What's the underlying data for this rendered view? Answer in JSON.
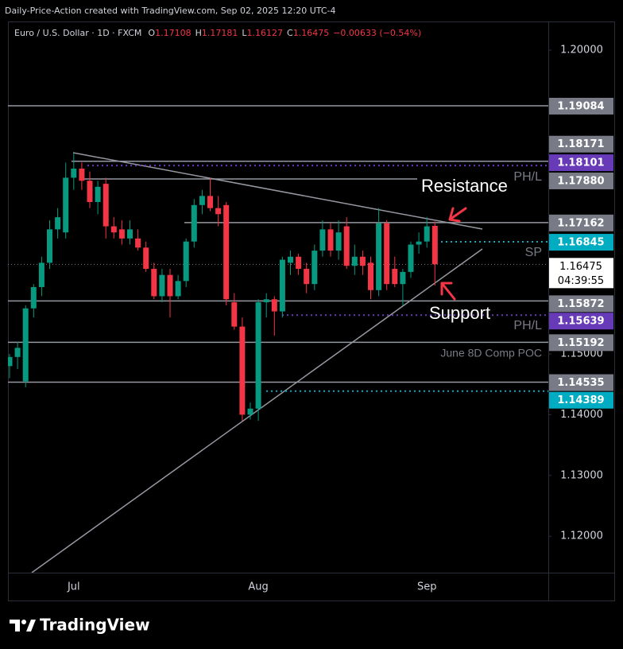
{
  "header": "Daily-Price-Action created with TradingView.com, Sep 02, 2025 12:20 UTC-4",
  "brand": "TradingView",
  "chart_data": {
    "type": "candlestick",
    "title": "Euro / U.S. Dollar · 1D · FXCM",
    "ohlc_letters": [
      "O",
      "H",
      "L",
      "C"
    ],
    "change": "−0.00633 (−0.54%)",
    "countdown": "04:39:55",
    "categories": [
      null,
      null,
      null,
      null,
      null,
      null,
      null,
      null,
      "Jul",
      null,
      null,
      null,
      null,
      null,
      null,
      null,
      null,
      null,
      null,
      null,
      null,
      null,
      null,
      null,
      null,
      null,
      null,
      null,
      null,
      null,
      null,
      "Aug",
      null,
      null,
      null,
      null,
      null,
      null,
      null,
      null,
      null,
      null,
      null,
      null,
      null,
      null,
      null,
      null,
      null,
      null,
      null,
      null,
      "Sep",
      null
    ],
    "open": [
      1.148,
      1.1495,
      1.1455,
      1.1575,
      1.161,
      1.165,
      1.1705,
      1.17,
      1.179,
      1.1805,
      1.1785,
      1.175,
      1.178,
      1.171,
      1.1705,
      1.169,
      1.169,
      1.1675,
      1.164,
      1.1595,
      1.163,
      1.1595,
      1.162,
      1.1685,
      1.1745,
      1.176,
      1.174,
      1.1745,
      1.1585,
      1.1545,
      1.14,
      1.141,
      1.1585,
      1.159,
      1.157,
      1.165,
      1.166,
      1.164,
      1.1615,
      1.167,
      1.1705,
      1.167,
      1.171,
      1.1645,
      1.166,
      1.165,
      1.1605,
      1.1715,
      1.164,
      1.1615,
      1.1635,
      1.168,
      1.1685,
      1.17108
    ],
    "high": [
      1.15,
      1.152,
      1.158,
      1.1615,
      1.166,
      1.172,
      1.174,
      1.1815,
      1.183,
      1.1815,
      1.18,
      1.1785,
      1.179,
      1.1725,
      1.172,
      1.172,
      1.1705,
      1.1685,
      1.165,
      1.164,
      1.164,
      1.163,
      1.169,
      1.1755,
      1.177,
      1.179,
      1.176,
      1.175,
      1.16,
      1.156,
      1.142,
      1.159,
      1.16,
      1.1595,
      1.166,
      1.167,
      1.1665,
      1.165,
      1.168,
      1.172,
      1.1715,
      1.172,
      1.1725,
      1.168,
      1.167,
      1.166,
      1.174,
      1.172,
      1.166,
      1.164,
      1.1685,
      1.17,
      1.1725,
      1.17181
    ],
    "low": [
      1.146,
      1.1475,
      1.1445,
      1.156,
      1.1595,
      1.164,
      1.169,
      1.169,
      1.177,
      1.177,
      1.174,
      1.173,
      1.169,
      1.169,
      1.168,
      1.168,
      1.167,
      1.1635,
      1.159,
      1.1585,
      1.156,
      1.159,
      1.161,
      1.1675,
      1.173,
      1.1735,
      1.171,
      1.158,
      1.154,
      1.139,
      1.1392,
      1.139,
      1.156,
      1.153,
      1.156,
      1.163,
      1.163,
      1.16,
      1.1605,
      1.166,
      1.166,
      1.1655,
      1.164,
      1.163,
      1.163,
      1.159,
      1.1595,
      1.1605,
      1.161,
      1.158,
      1.1625,
      1.1665,
      1.1675,
      1.16127
    ],
    "close": [
      1.1495,
      1.151,
      1.1575,
      1.161,
      1.165,
      1.1705,
      1.1725,
      1.179,
      1.1805,
      1.1785,
      1.175,
      1.1775,
      1.171,
      1.17,
      1.169,
      1.1705,
      1.1675,
      1.164,
      1.1595,
      1.163,
      1.1595,
      1.162,
      1.1685,
      1.1745,
      1.176,
      1.174,
      1.173,
      1.159,
      1.1545,
      1.14,
      1.141,
      1.1585,
      1.159,
      1.157,
      1.1655,
      1.166,
      1.164,
      1.1615,
      1.167,
      1.1705,
      1.167,
      1.17,
      1.1645,
      1.166,
      1.1645,
      1.1605,
      1.1715,
      1.1615,
      1.1615,
      1.1635,
      1.168,
      1.1685,
      1.171,
      1.16475
    ],
    "up_color": "#089981",
    "down_color": "#f23645",
    "ylim": [
      1.11401,
      1.20471
    ],
    "yticks": [
      {
        "value": 1.2,
        "label": "1.20000"
      },
      {
        "value": 1.15,
        "label": "1.15000"
      },
      {
        "value": 1.14,
        "label": "1.14000"
      },
      {
        "value": 1.13,
        "label": "1.13000"
      },
      {
        "value": 1.12,
        "label": "1.12000"
      }
    ],
    "grid": false,
    "levels": [
      {
        "value": 1.19084,
        "label": "1.19084",
        "color": "#787b86",
        "style": "solid"
      },
      {
        "value": 1.18171,
        "label": "1.18171",
        "color": "#787b86",
        "style": "solid"
      },
      {
        "value": 1.18101,
        "label": "1.18101",
        "color": "#673ab7",
        "style": "dotted"
      },
      {
        "value": 1.1788,
        "label": "1.17880",
        "color": "#787b86",
        "style": "solid"
      },
      {
        "value": 1.17162,
        "label": "1.17162",
        "color": "#787b86",
        "style": "solid"
      },
      {
        "value": 1.16845,
        "label": "1.16845",
        "color": "#00acc1",
        "style": "dotted"
      },
      {
        "value": 1.15872,
        "label": "1.15872",
        "color": "#787b86",
        "style": "solid"
      },
      {
        "value": 1.15639,
        "label": "1.15639",
        "color": "#673ab7",
        "style": "dotted"
      },
      {
        "value": 1.15192,
        "label": "1.15192",
        "color": "#787b86",
        "style": "solid"
      },
      {
        "value": 1.14535,
        "label": "1.14535",
        "color": "#787b86",
        "style": "solid"
      },
      {
        "value": 1.14389,
        "label": "1.14389",
        "color": "#00acc1",
        "style": "dotted"
      }
    ],
    "annotations": [
      "Resistance",
      "Support",
      "PH/L",
      "SP",
      "PH/L",
      "June 8D Comp POC"
    ]
  }
}
